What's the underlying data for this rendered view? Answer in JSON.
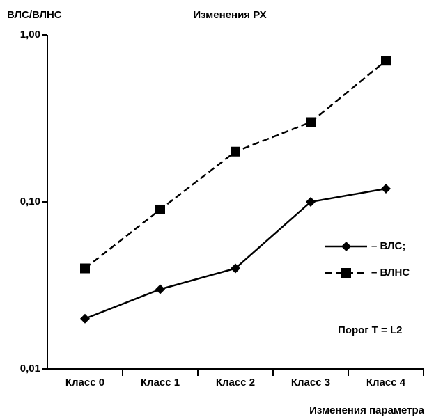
{
  "chart_data": {
    "type": "line",
    "title": "Изменения РХ",
    "y_label": "ВЛС/ВЛНС",
    "x_label": "Изменения параметра",
    "annotation": "Порог Т = L2",
    "categories": [
      "Класс 0",
      "Класс 1",
      "Класс 2",
      "Класс 3",
      "Класс 4"
    ],
    "series": [
      {
        "name": "– ВЛС;",
        "color": "#000000",
        "dash": "solid",
        "marker": "diamond",
        "values": [
          0.02,
          0.03,
          0.04,
          0.1,
          0.12
        ]
      },
      {
        "name": "– ВЛНС",
        "color": "#000000",
        "dash": "dashed",
        "marker": "square",
        "values": [
          0.04,
          0.09,
          0.2,
          0.3,
          0.7
        ]
      }
    ],
    "log_y": true,
    "ylim": [
      0.01,
      1
    ],
    "yticks": [
      {
        "value": 0.01,
        "label": "0,01"
      },
      {
        "value": 0.1,
        "label": "0,10"
      },
      {
        "value": 1,
        "label": "1,00"
      }
    ],
    "legend_position": "right"
  }
}
